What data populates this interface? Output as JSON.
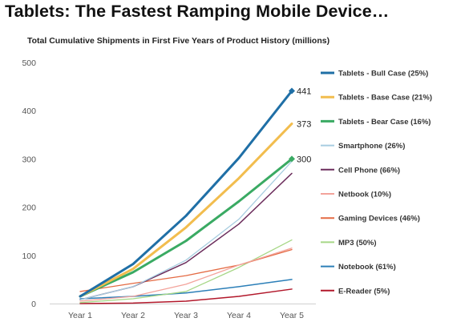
{
  "page": {
    "title": "Tablets: The Fastest Ramping Mobile Device…",
    "subtitle": "Total Cumulative Shipments in First Five Years of Product History (millions)"
  },
  "chart_data": {
    "type": "line",
    "title": "Total Cumulative Shipments in First Five Years of Product History (millions)",
    "xlabel": "",
    "ylabel": "",
    "categories": [
      "Year 1",
      "Year 2",
      "Year 3",
      "Year 4",
      "Year 5"
    ],
    "ylim": [
      0,
      500
    ],
    "yticks": [
      0,
      100,
      200,
      300,
      400,
      500
    ],
    "grid": false,
    "legend_position": "right",
    "series": [
      {
        "name": "Tablets - Bull Case (25%)",
        "color": "#1f6fa6",
        "values": [
          15,
          82,
          182,
          302,
          441
        ],
        "end_label": "441",
        "marker": "diamond",
        "width": 3
      },
      {
        "name": "Tablets - Base Case (21%)",
        "color": "#f2bd4e",
        "values": [
          15,
          72,
          158,
          260,
          373
        ],
        "end_label": "373",
        "marker": "none",
        "width": 3
      },
      {
        "name": "Tablets - Bear Case (16%)",
        "color": "#3aaa63",
        "values": [
          15,
          65,
          130,
          212,
          300
        ],
        "end_label": "300",
        "marker": "diamond",
        "width": 3
      },
      {
        "name": "Smartphone (26%)",
        "color": "#a7cde0",
        "values": [
          8,
          35,
          90,
          175,
          295
        ],
        "marker": "none",
        "width": 1.3
      },
      {
        "name": "Cell Phone (66%)",
        "color": "#6b2d5c",
        "values": [
          8,
          35,
          85,
          165,
          270
        ],
        "marker": "none",
        "width": 1.5
      },
      {
        "name": "Netbook (10%)",
        "color": "#f3a39b",
        "values": [
          5,
          15,
          40,
          80,
          115
        ],
        "marker": "none",
        "width": 1.3
      },
      {
        "name": "Gaming Devices (46%)",
        "color": "#e46a43",
        "values": [
          25,
          42,
          58,
          80,
          112
        ],
        "marker": "none",
        "width": 1.3
      },
      {
        "name": "MP3 (50%)",
        "color": "#a6d786",
        "values": [
          2,
          10,
          25,
          75,
          132
        ],
        "marker": "none",
        "width": 1.3
      },
      {
        "name": "Notebook (61%)",
        "color": "#2c7fb8",
        "values": [
          10,
          15,
          22,
          35,
          50
        ],
        "marker": "none",
        "width": 1.5
      },
      {
        "name": "E-Reader (5%)",
        "color": "#b2182b",
        "values": [
          0,
          1,
          5,
          15,
          30
        ],
        "marker": "none",
        "width": 1.5
      }
    ]
  }
}
